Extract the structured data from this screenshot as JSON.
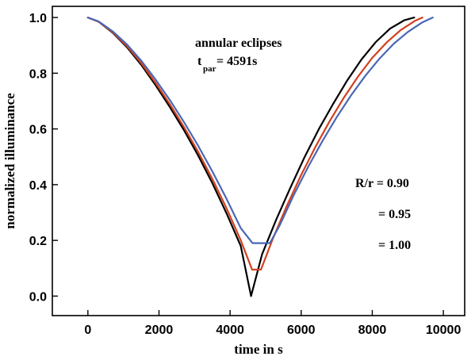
{
  "chart_data": {
    "type": "line",
    "xlabel": "time in s",
    "ylabel": "normalized illuminance",
    "xlim": [
      -1000,
      10600
    ],
    "ylim": [
      -0.07,
      1.04
    ],
    "x_ticks": [
      0,
      2000,
      4000,
      6000,
      8000,
      10000
    ],
    "x_tick_labels": [
      "0",
      "2000",
      "4000",
      "6000",
      "8000",
      "10000"
    ],
    "y_ticks": [
      0.0,
      0.2,
      0.4,
      0.6,
      0.8,
      1.0
    ],
    "y_tick_labels": [
      "0.0",
      "0.2",
      "0.4",
      "0.6",
      "0.8",
      "1.0"
    ],
    "grid": false,
    "annotations": {
      "eclipse_type": "annular eclipses",
      "tpar_symbol": "t",
      "tpar_subscript": "par",
      "tpar_value": "= 4591s",
      "ratio_label_1": "R/r = 0.90",
      "ratio_label_2": "= 0.95",
      "ratio_label_3": "= 1.00"
    },
    "series": [
      {
        "color": "#000000",
        "x": [
          0,
          300,
          700,
          1100,
          1500,
          1900,
          2300,
          2700,
          3100,
          3500,
          3900,
          4300,
          4591,
          4900,
          5300,
          5700,
          6100,
          6500,
          6900,
          7300,
          7700,
          8100,
          8500,
          8900,
          9182
        ],
        "y": [
          1.0,
          0.985,
          0.945,
          0.893,
          0.83,
          0.758,
          0.68,
          0.596,
          0.505,
          0.406,
          0.297,
          0.18,
          0.0,
          0.15,
          0.275,
          0.39,
          0.5,
          0.6,
          0.69,
          0.775,
          0.85,
          0.912,
          0.96,
          0.99,
          1.0
        ]
      },
      {
        "color": "#d2401e",
        "x": [
          0,
          300,
          700,
          1100,
          1500,
          1900,
          2300,
          2700,
          3100,
          3500,
          3900,
          4300,
          4620,
          4870,
          5200,
          5600,
          6000,
          6400,
          6800,
          7200,
          7600,
          8000,
          8400,
          8800,
          9200,
          9411
        ],
        "y": [
          1.0,
          0.985,
          0.947,
          0.897,
          0.836,
          0.766,
          0.69,
          0.607,
          0.518,
          0.421,
          0.315,
          0.2,
          0.095,
          0.095,
          0.205,
          0.325,
          0.435,
          0.535,
          0.628,
          0.712,
          0.788,
          0.855,
          0.91,
          0.955,
          0.988,
          1.0
        ]
      },
      {
        "color": "#4a67b4",
        "x": [
          0,
          300,
          700,
          1100,
          1500,
          1900,
          2300,
          2700,
          3100,
          3500,
          3900,
          4300,
          4630,
          5120,
          5400,
          5800,
          6200,
          6600,
          7000,
          7400,
          7800,
          8200,
          8600,
          9000,
          9400,
          9700
        ],
        "y": [
          1.0,
          0.986,
          0.95,
          0.903,
          0.845,
          0.778,
          0.705,
          0.625,
          0.54,
          0.448,
          0.349,
          0.244,
          0.19,
          0.19,
          0.255,
          0.365,
          0.465,
          0.557,
          0.642,
          0.72,
          0.79,
          0.852,
          0.905,
          0.948,
          0.982,
          1.0
        ]
      }
    ]
  }
}
